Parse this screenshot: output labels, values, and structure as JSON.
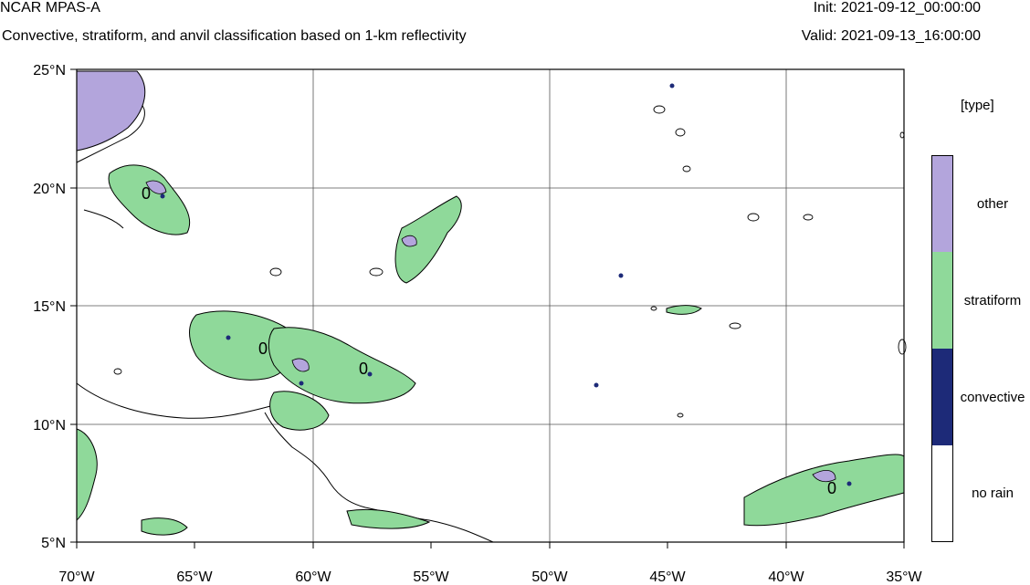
{
  "header": {
    "title": "NCAR MPAS-A",
    "subtitle": "Convective, stratiform, and anvil classification based on 1-km reflectivity",
    "init": "Init: 2021-09-12_00:00:00",
    "valid": "Valid: 2021-09-13_16:00:00"
  },
  "map": {
    "lon_range": [
      -70,
      -35
    ],
    "lat_range": [
      5,
      25
    ],
    "x_ticks": [
      "70°W",
      "65°W",
      "60°W",
      "55°W",
      "50°W",
      "45°W",
      "40°W",
      "35°W"
    ],
    "y_ticks": [
      "25°N",
      "20°N",
      "15°N",
      "10°N",
      "5°N"
    ],
    "contour_label": "0",
    "colors": {
      "other": "#b3a5dc",
      "stratiform": "#8fd99a",
      "convective": "#1d2a78",
      "no_rain": "#ffffff"
    }
  },
  "legend": {
    "title": "[type]",
    "items": [
      {
        "label": "other",
        "color": "#b3a5dc"
      },
      {
        "label": "stratiform",
        "color": "#8fd99a"
      },
      {
        "label": "convective",
        "color": "#1d2a78"
      },
      {
        "label": "no rain",
        "color": "#ffffff"
      }
    ]
  }
}
